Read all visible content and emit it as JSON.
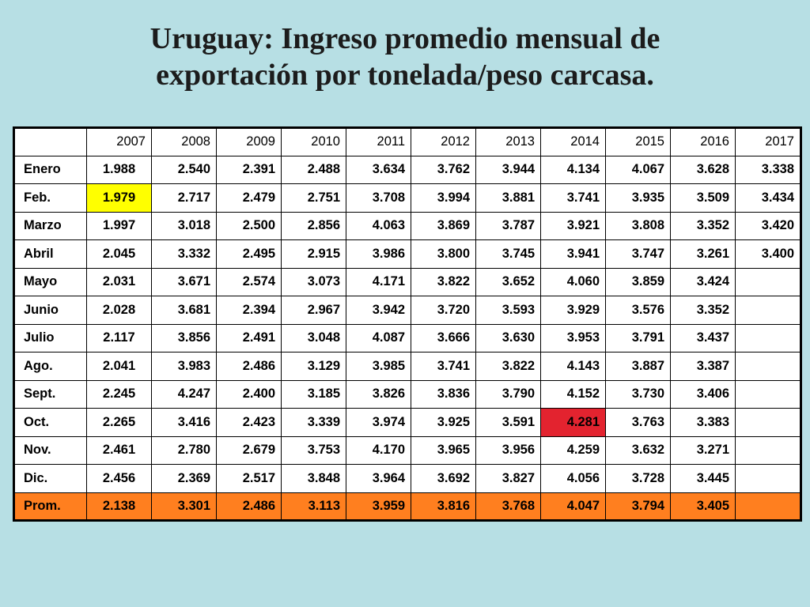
{
  "title": {
    "line1": "Uruguay: Ingreso promedio mensual de",
    "line2": "exportación por tonelada/peso carcasa."
  },
  "table": {
    "corner": "",
    "years": [
      "2007",
      "2008",
      "2009",
      "2010",
      "2011",
      "2012",
      "2013",
      "2014",
      "2015",
      "2016",
      "2017"
    ],
    "rows": [
      {
        "month": "Enero",
        "values": [
          "1.988",
          "2.540",
          "2.391",
          "2.488",
          "3.634",
          "3.762",
          "3.944",
          "4.134",
          "4.067",
          "3.628",
          "3.338"
        ]
      },
      {
        "month": "Feb.",
        "values": [
          "1.979",
          "2.717",
          "2.479",
          "2.751",
          "3.708",
          "3.994",
          "3.881",
          "3.741",
          "3.935",
          "3.509",
          "3.434"
        ]
      },
      {
        "month": "Marzo",
        "values": [
          "1.997",
          "3.018",
          "2.500",
          "2.856",
          "4.063",
          "3.869",
          "3.787",
          "3.921",
          "3.808",
          "3.352",
          "3.420"
        ]
      },
      {
        "month": "Abril",
        "values": [
          "2.045",
          "3.332",
          "2.495",
          "2.915",
          "3.986",
          "3.800",
          "3.745",
          "3.941",
          "3.747",
          "3.261",
          "3.400"
        ]
      },
      {
        "month": "Mayo",
        "values": [
          "2.031",
          "3.671",
          "2.574",
          "3.073",
          "4.171",
          "3.822",
          "3.652",
          "4.060",
          "3.859",
          "3.424",
          ""
        ]
      },
      {
        "month": "Junio",
        "values": [
          "2.028",
          "3.681",
          "2.394",
          "2.967",
          "3.942",
          "3.720",
          "3.593",
          "3.929",
          "3.576",
          "3.352",
          ""
        ]
      },
      {
        "month": "Julio",
        "values": [
          "2.117",
          "3.856",
          "2.491",
          "3.048",
          "4.087",
          "3.666",
          "3.630",
          "3.953",
          "3.791",
          "3.437",
          ""
        ]
      },
      {
        "month": "Ago.",
        "values": [
          "2.041",
          "3.983",
          "2.486",
          "3.129",
          "3.985",
          "3.741",
          "3.822",
          "4.143",
          "3.887",
          "3.387",
          ""
        ]
      },
      {
        "month": "Sept.",
        "values": [
          "2.245",
          "4.247",
          "2.400",
          "3.185",
          "3.826",
          "3.836",
          "3.790",
          "4.152",
          "3.730",
          "3.406",
          ""
        ]
      },
      {
        "month": "Oct.",
        "values": [
          "2.265",
          "3.416",
          "2.423",
          "3.339",
          "3.974",
          "3.925",
          "3.591",
          "4.281",
          "3.763",
          "3.383",
          ""
        ]
      },
      {
        "month": "Nov.",
        "values": [
          "2.461",
          "2.780",
          "2.679",
          "3.753",
          "4.170",
          "3.965",
          "3.956",
          "4.259",
          "3.632",
          "3.271",
          ""
        ]
      },
      {
        "month": "Dic.",
        "values": [
          "2.456",
          "2.369",
          "2.517",
          "3.848",
          "3.964",
          "3.692",
          "3.827",
          "4.056",
          "3.728",
          "3.445",
          ""
        ]
      }
    ],
    "prom": {
      "month": "Prom.",
      "values": [
        "2.138",
        "3.301",
        "2.486",
        "3.113",
        "3.959",
        "3.816",
        "3.768",
        "4.047",
        "3.794",
        "3.405",
        ""
      ]
    },
    "highlights": [
      {
        "row": 1,
        "col": 0,
        "color": "#ffff00"
      },
      {
        "row": 9,
        "col": 7,
        "color": "#e3232f"
      }
    ],
    "colors": {
      "background": "#b7dfe4",
      "prom_row": "#ff7f1f",
      "min_highlight": "#ffff00",
      "max_highlight": "#e3232f"
    }
  }
}
